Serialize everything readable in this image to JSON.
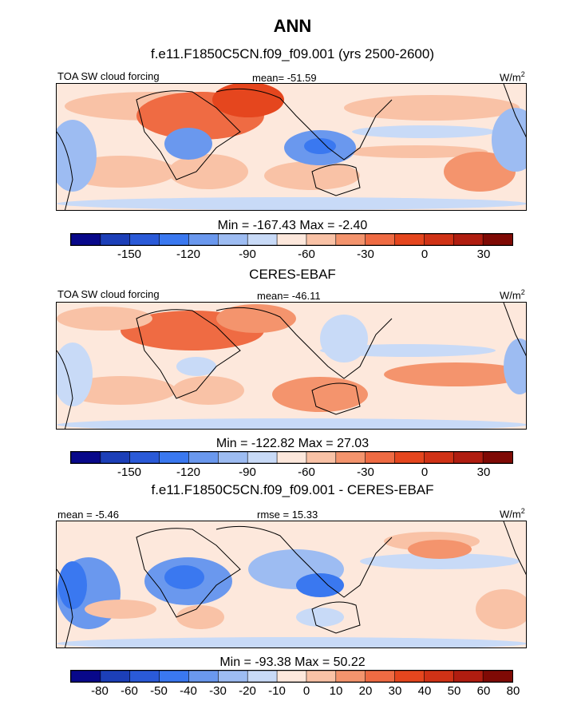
{
  "main_title": "ANN",
  "colors": {
    "levels_abs": [
      "#08088a",
      "#1c3fb8",
      "#2a5ad8",
      "#3a78f0",
      "#6a98ee",
      "#9dbcf2",
      "#c8daf7",
      "#fde8dc",
      "#f9c2a6",
      "#f4946d",
      "#ef6b43",
      "#e5461e",
      "#d03216",
      "#b01d10",
      "#7f0a05"
    ],
    "land_outline": "#000000"
  },
  "chart_data": [
    {
      "type": "heatmap",
      "panel_title": "f.e11.F1850C5CN.f09_f09.001 (yrs 2500-2600)",
      "left_label": "TOA SW cloud forcing",
      "center_label": "mean= -51.59",
      "units": "W/m",
      "units_sup": "2",
      "minmax_label": "Min = -167.43 Max =  -2.40",
      "min": -167.43,
      "max": -2.4,
      "mean": -51.59,
      "colorbar_ticks": [
        "-150",
        "-120",
        "-90",
        "-60",
        "-30",
        "0",
        "30"
      ]
    },
    {
      "type": "heatmap",
      "panel_title": "CERES-EBAF",
      "left_label": "TOA SW cloud forcing",
      "center_label": "mean= -46.11",
      "units": "W/m",
      "units_sup": "2",
      "minmax_label": "Min = -122.82 Max =  27.03",
      "min": -122.82,
      "max": 27.03,
      "mean": -46.11,
      "colorbar_ticks": [
        "-150",
        "-120",
        "-90",
        "-60",
        "-30",
        "0",
        "30"
      ]
    },
    {
      "type": "heatmap",
      "panel_title": "f.e11.F1850C5CN.f09_f09.001 - CERES-EBAF",
      "left_label": "mean =  -5.46",
      "center_label": "rmse =  15.33",
      "units": "W/m",
      "units_sup": "2",
      "minmax_label": "Min = -93.38 Max =  50.22",
      "min": -93.38,
      "max": 50.22,
      "mean": -5.46,
      "rmse": 15.33,
      "colorbar_ticks": [
        "-80",
        "-60",
        "-50",
        "-40",
        "-30",
        "-20",
        "-10",
        "0",
        "10",
        "20",
        "30",
        "40",
        "50",
        "60",
        "80"
      ]
    }
  ]
}
